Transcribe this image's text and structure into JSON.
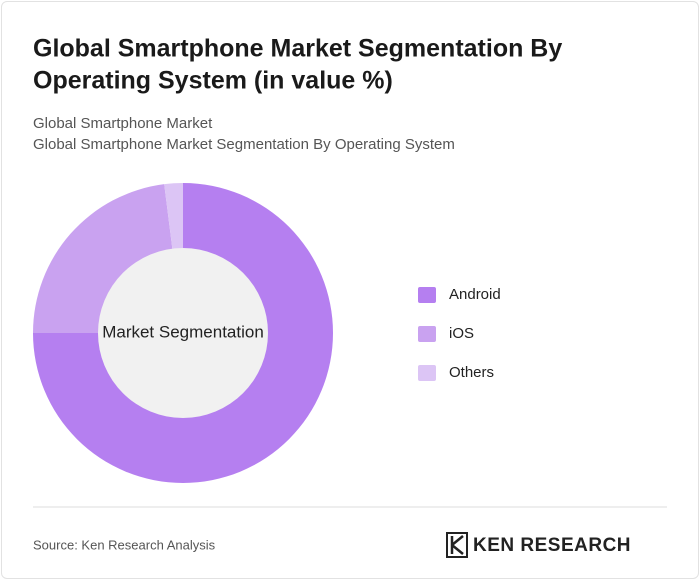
{
  "chart_data": {
    "type": "pie",
    "title": [
      "Global Smartphone Market Segmentation By",
      "Operating System (in value %)"
    ],
    "subtitle": [
      "Global Smartphone Market",
      "Global Smartphone Market Segmentation By Operating System"
    ],
    "center_label": "Market Segmentation",
    "categories": [
      "Android",
      "iOS",
      "Others"
    ],
    "values": [
      75,
      23,
      2
    ],
    "colors": [
      "#b57ff0",
      "#c9a2f0",
      "#dcc5f5"
    ]
  },
  "source": "Source: Ken Research Analysis",
  "brand": "KEN RESEARCH"
}
